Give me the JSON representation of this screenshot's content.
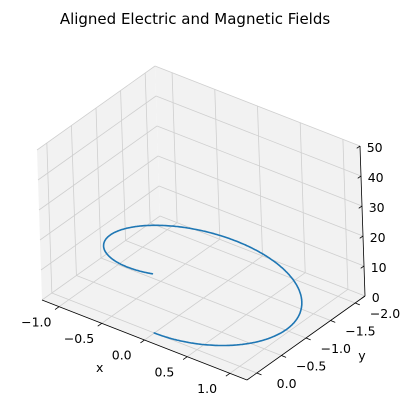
{
  "chart_data": {
    "type": "line",
    "projection": "3d",
    "title": "Aligned Electric and Magnetic Fields",
    "xlabel": "x",
    "ylabel": "y",
    "zlabel": "",
    "xlim": [
      -1.2,
      1.2
    ],
    "ylim": [
      -2.2,
      0.2
    ],
    "zlim": [
      0,
      50
    ],
    "xticks": [
      -1.0,
      -0.5,
      0.0,
      0.5,
      1.0
    ],
    "yticks": [
      -2.0,
      -1.5,
      -1.0,
      -0.5,
      0.0
    ],
    "zticks": [
      0,
      10,
      20,
      30,
      40,
      50
    ],
    "xtick_labels": [
      "−1.0",
      "−0.5",
      "0.0",
      "0.5",
      "1.0"
    ],
    "ytick_labels": [
      "−2.0",
      "−1.5",
      "−1.0",
      "−0.5",
      "0.0"
    ],
    "ztick_labels": [
      "0",
      "10",
      "20",
      "30",
      "40",
      "50"
    ],
    "grid": true,
    "pane_color": "#f2f2f2",
    "series": [
      {
        "color": "#1f77b4",
        "curve": "helix",
        "parametric": {
          "x": "sin(t)",
          "y": "cos(t) - 1",
          "z": "0.5 * t^2"
        },
        "t_range": [
          0,
          6.2832
        ],
        "start_point": [
          0.0,
          0.0,
          0.0
        ],
        "end_point": [
          0.0,
          0.0,
          19.7
        ]
      }
    ]
  }
}
